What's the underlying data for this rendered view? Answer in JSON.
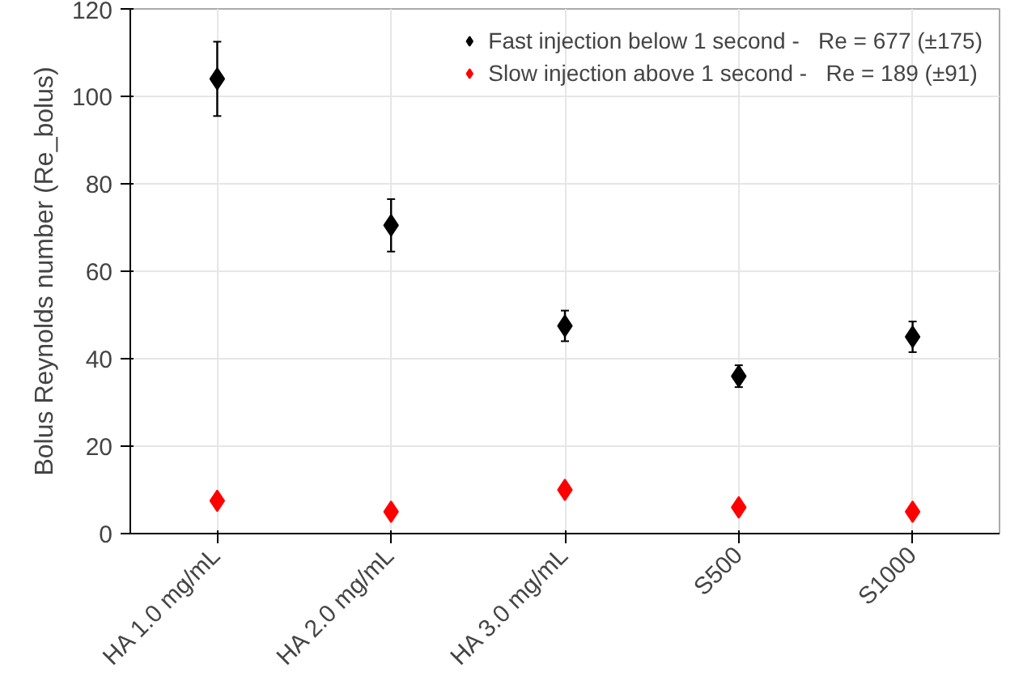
{
  "chart_data": {
    "type": "scatter",
    "ylabel": "Bolus Reynolds number (Re_bolus)",
    "categories": [
      "HA 1.0 mg/mL",
      "HA 2.0 mg/mL",
      "HA 3.0 mg/mL",
      "S500",
      "S1000"
    ],
    "series": [
      {
        "name": "Fast injection below 1 second -   Re = 677 (±175)",
        "color": "#000000",
        "values": [
          104,
          70.5,
          47.5,
          36,
          45
        ],
        "errors": [
          8.5,
          6,
          3.5,
          2.5,
          3.5
        ]
      },
      {
        "name": "Slow injection above 1 second -   Re = 189 (±91)",
        "color": "#ff0000",
        "values": [
          7.5,
          5,
          10,
          6,
          5
        ]
      }
    ],
    "ylim": [
      0,
      120
    ],
    "yticks": [
      0,
      20,
      40,
      60,
      80,
      100,
      120
    ],
    "grid": true,
    "legend": "top right",
    "marker": "diamond"
  }
}
